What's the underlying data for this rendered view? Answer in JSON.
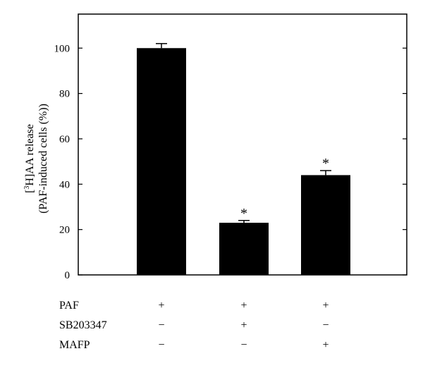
{
  "chart_data": {
    "type": "bar",
    "categories": [
      "PAF+ / SB203347− / MAFP−",
      "PAF+ / SB203347+ / MAFP−",
      "PAF+ / SB203347− / MAFP+"
    ],
    "values": [
      100,
      23,
      44
    ],
    "errors": [
      2,
      1,
      2
    ],
    "significance": [
      "",
      "*",
      "*"
    ],
    "ylabel_prefix": "[",
    "ylabel_sup": "3",
    "ylabel_rest": "H]AA release",
    "ylabel_line2": "(PAF-induced cells (%))",
    "ylim": [
      0,
      115
    ],
    "yticks": [
      0,
      20,
      40,
      60,
      80,
      100
    ],
    "bar_color": "#000000",
    "grid": false
  },
  "conditions": [
    {
      "name": "PAF",
      "marks": [
        "+",
        "+",
        "+"
      ]
    },
    {
      "name": "SB203347",
      "marks": [
        "−",
        "+",
        "−"
      ]
    },
    {
      "name": "MAFP",
      "marks": [
        "−",
        "−",
        "+"
      ]
    }
  ]
}
